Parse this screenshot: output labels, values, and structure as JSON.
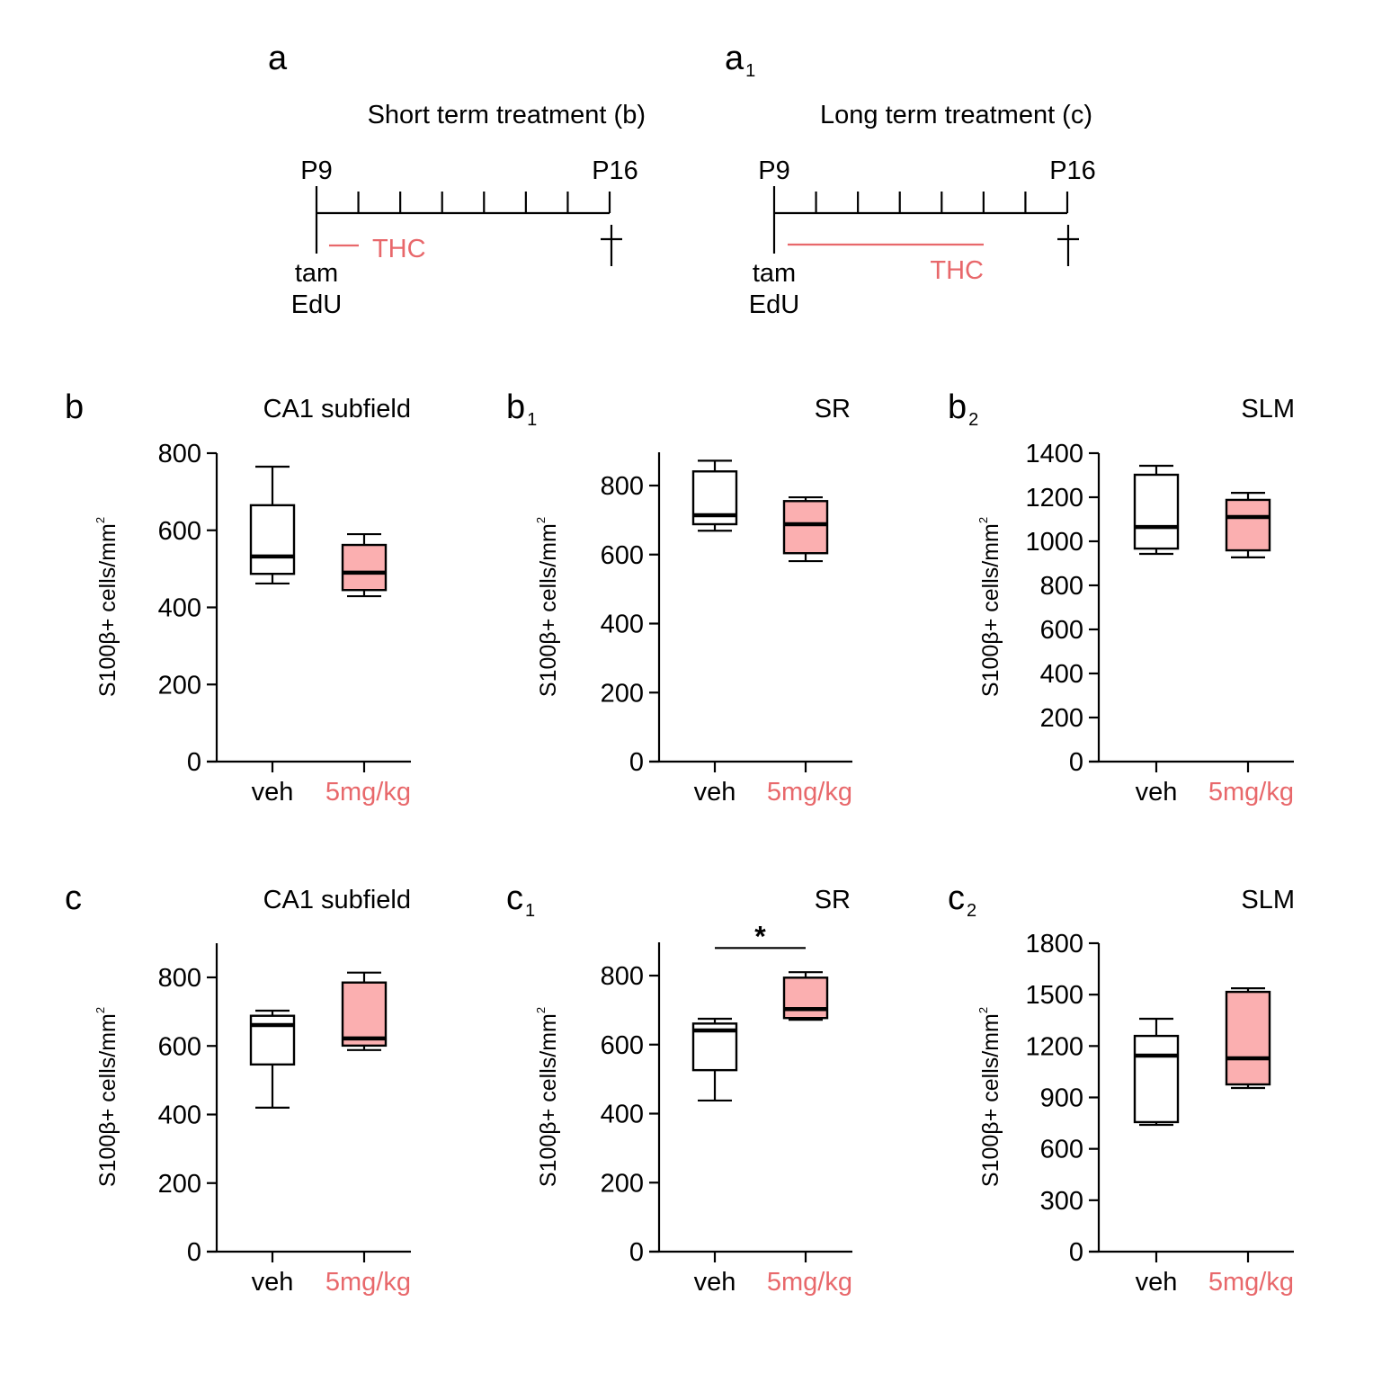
{
  "colors": {
    "black": "#000000",
    "thc": "#e8686b",
    "thc_fill": "#fbafb0",
    "veh_fill": "#ffffff"
  },
  "timelines": [
    {
      "panel": "a",
      "panel_sub": "",
      "title": "Short term treatment (b)",
      "start_label": "P9",
      "end_label": "P16",
      "start_note_1": "tam",
      "start_note_2": "EdU",
      "thc_label": "THC",
      "end_symbol": "†",
      "days": 7,
      "thc_days": [
        0.3,
        1.0
      ],
      "thc_label_pos": "right-of-line"
    },
    {
      "panel": "a",
      "panel_sub": "1",
      "title": "Long term treatment (c)",
      "start_label": "P9",
      "end_label": "P16",
      "start_note_1": "tam",
      "start_note_2": "EdU",
      "thc_label": "THC",
      "end_symbol": "†",
      "days": 7,
      "thc_days": [
        0.3,
        5.0
      ],
      "thc_label_pos": "below-line-end"
    }
  ],
  "chart_data": [
    {
      "type": "box",
      "panel": "b",
      "panel_sub": "",
      "title": "CA1 subfield",
      "ylabel": "S100β+ cells/mm",
      "ylabel_sup": "2",
      "ylim": [
        0,
        800
      ],
      "yticks": [
        "0",
        "200",
        "400",
        "600",
        "800"
      ],
      "ytick_values": [
        0,
        200,
        400,
        600,
        800
      ],
      "categories": [
        "veh",
        "5mg/kg"
      ],
      "boxes": [
        {
          "name": "veh",
          "min": 462,
          "q1": 487,
          "median": 532,
          "q3": 665,
          "max": 765
        },
        {
          "name": "5mg/kg",
          "min": 429,
          "q1": 445,
          "median": 490,
          "q3": 562,
          "max": 590
        }
      ],
      "significance": null
    },
    {
      "type": "box",
      "panel": "b",
      "panel_sub": "1",
      "title": "SR",
      "ylabel": "S100β+ cells/mm",
      "ylabel_sup": "2",
      "ylim": [
        0,
        900
      ],
      "yticks": [
        "0",
        "200",
        "400",
        "600",
        "800"
      ],
      "ytick_values": [
        0,
        200,
        400,
        600,
        800
      ],
      "categories": [
        "veh",
        "5mg/kg"
      ],
      "boxes": [
        {
          "name": "veh",
          "min": 669,
          "q1": 688,
          "median": 714,
          "q3": 841,
          "max": 872
        },
        {
          "name": "5mg/kg",
          "min": 581,
          "q1": 604,
          "median": 688,
          "q3": 755,
          "max": 766
        }
      ],
      "significance": null
    },
    {
      "type": "box",
      "panel": "b",
      "panel_sub": "2",
      "title": "SLM",
      "ylabel": "S100β+ cells/mm",
      "ylabel_sup": "2",
      "ylim": [
        0,
        1400
      ],
      "yticks": [
        "0",
        "200",
        "400",
        "600",
        "800",
        "1000",
        "1200",
        "1400"
      ],
      "ytick_values": [
        0,
        200,
        400,
        600,
        800,
        1000,
        1200,
        1400
      ],
      "categories": [
        "veh",
        "5mg/kg"
      ],
      "boxes": [
        {
          "name": "veh",
          "min": 943,
          "q1": 967,
          "median": 1065,
          "q3": 1302,
          "max": 1343
        },
        {
          "name": "5mg/kg",
          "min": 927,
          "q1": 959,
          "median": 1110,
          "q3": 1188,
          "max": 1220
        }
      ],
      "significance": null
    },
    {
      "type": "box",
      "panel": "c",
      "panel_sub": "",
      "title": "CA1 subfield",
      "ylabel": "S100β+ cells/mm",
      "ylabel_sup": "2",
      "ylim": [
        0,
        900
      ],
      "yticks": [
        "0",
        "200",
        "400",
        "600",
        "800"
      ],
      "ytick_values": [
        0,
        200,
        400,
        600,
        800
      ],
      "categories": [
        "veh",
        "5mg/kg"
      ],
      "boxes": [
        {
          "name": "veh",
          "min": 420,
          "q1": 546,
          "median": 661,
          "q3": 688,
          "max": 703
        },
        {
          "name": "5mg/kg",
          "min": 588,
          "q1": 601,
          "median": 622,
          "q3": 785,
          "max": 814
        }
      ],
      "significance": null
    },
    {
      "type": "box",
      "panel": "c",
      "panel_sub": "1",
      "title": "SR",
      "ylabel": "S100β+ cells/mm",
      "ylabel_sup": "2",
      "ylim": [
        0,
        900
      ],
      "yticks": [
        "0",
        "200",
        "400",
        "600",
        "800"
      ],
      "ytick_values": [
        0,
        200,
        400,
        600,
        800
      ],
      "categories": [
        "veh",
        "5mg/kg"
      ],
      "boxes": [
        {
          "name": "veh",
          "min": 438,
          "q1": 526,
          "median": 641,
          "q3": 661,
          "max": 675
        },
        {
          "name": "5mg/kg",
          "min": 672,
          "q1": 677,
          "median": 703,
          "q3": 794,
          "max": 810
        }
      ],
      "significance": {
        "label": "*",
        "y": 880
      }
    },
    {
      "type": "box",
      "panel": "c",
      "panel_sub": "2",
      "title": "SLM",
      "ylabel": "S100β+ cells/mm",
      "ylabel_sup": "2",
      "ylim": [
        0,
        1800
      ],
      "yticks": [
        "0",
        "300",
        "600",
        "900",
        "1200",
        "1500",
        "1800"
      ],
      "ytick_values": [
        0,
        300,
        600,
        900,
        1200,
        1500,
        1800
      ],
      "categories": [
        "veh",
        "5mg/kg"
      ],
      "boxes": [
        {
          "name": "veh",
          "min": 740,
          "q1": 756,
          "median": 1144,
          "q3": 1259,
          "max": 1359
        },
        {
          "name": "5mg/kg",
          "min": 955,
          "q1": 976,
          "median": 1128,
          "q3": 1516,
          "max": 1537
        }
      ],
      "significance": null
    }
  ]
}
